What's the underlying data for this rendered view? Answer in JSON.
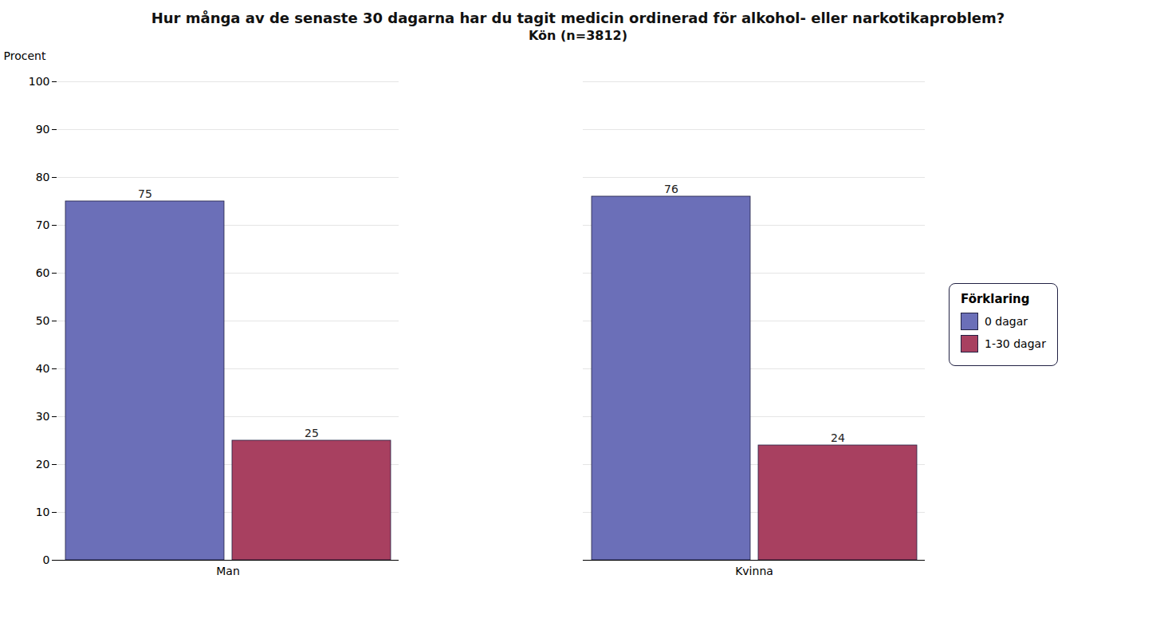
{
  "chart_data": {
    "type": "bar",
    "title": "Hur många av de senaste 30 dagarna har du tagit medicin ordinerad för alkohol- eller narkotikaproblem?",
    "subtitle": "Kön (n=3812)",
    "categories": [
      "Man",
      "Kvinna"
    ],
    "series": [
      {
        "name": "0 dagar",
        "color": "#6b6fb8",
        "values": [
          75,
          76
        ]
      },
      {
        "name": "1-30 dagar",
        "color": "#a84060",
        "values": [
          25,
          24
        ]
      }
    ],
    "ylabel": "Procent",
    "ylim": [
      0,
      100
    ],
    "yticks": [
      0,
      10,
      20,
      30,
      40,
      50,
      60,
      70,
      80,
      90,
      100
    ],
    "grid": true,
    "data_labels": true,
    "legend": "right",
    "legend_title": "Förklaring"
  }
}
